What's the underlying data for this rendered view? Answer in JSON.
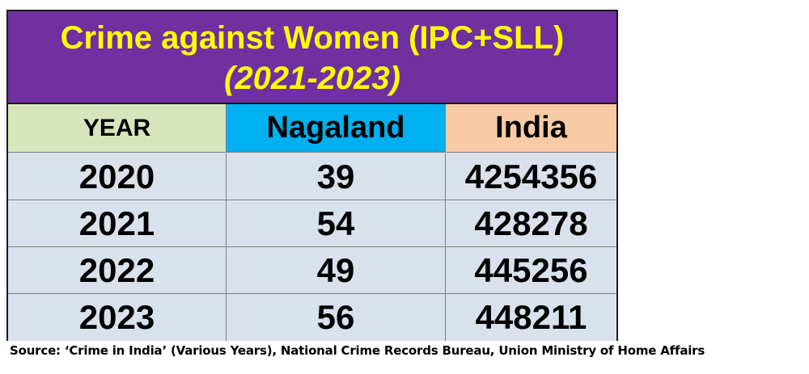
{
  "title": {
    "line1": "Crime against Women (IPC+SLL)",
    "line2": "(2021-2023)"
  },
  "table": {
    "headers": [
      "YEAR",
      "Nagaland",
      "India"
    ],
    "rows": [
      [
        "2020",
        "39",
        "4254356"
      ],
      [
        "2021",
        "54",
        "428278"
      ],
      [
        "2022",
        "49",
        "445256"
      ],
      [
        "2023",
        "56",
        "448211"
      ]
    ]
  },
  "source": "Source: ‘Crime in India’ (Various Years), National Crime Records Bureau, Union Ministry of Home Affairs",
  "colors": {
    "title_bg": "#7030a0",
    "title_text": "#ffff00",
    "year_header_bg": "#d8e4bc",
    "nagaland_header_bg": "#00b0f0",
    "india_header_bg": "#f8cba6",
    "body_bg": "#d9e1ec"
  }
}
